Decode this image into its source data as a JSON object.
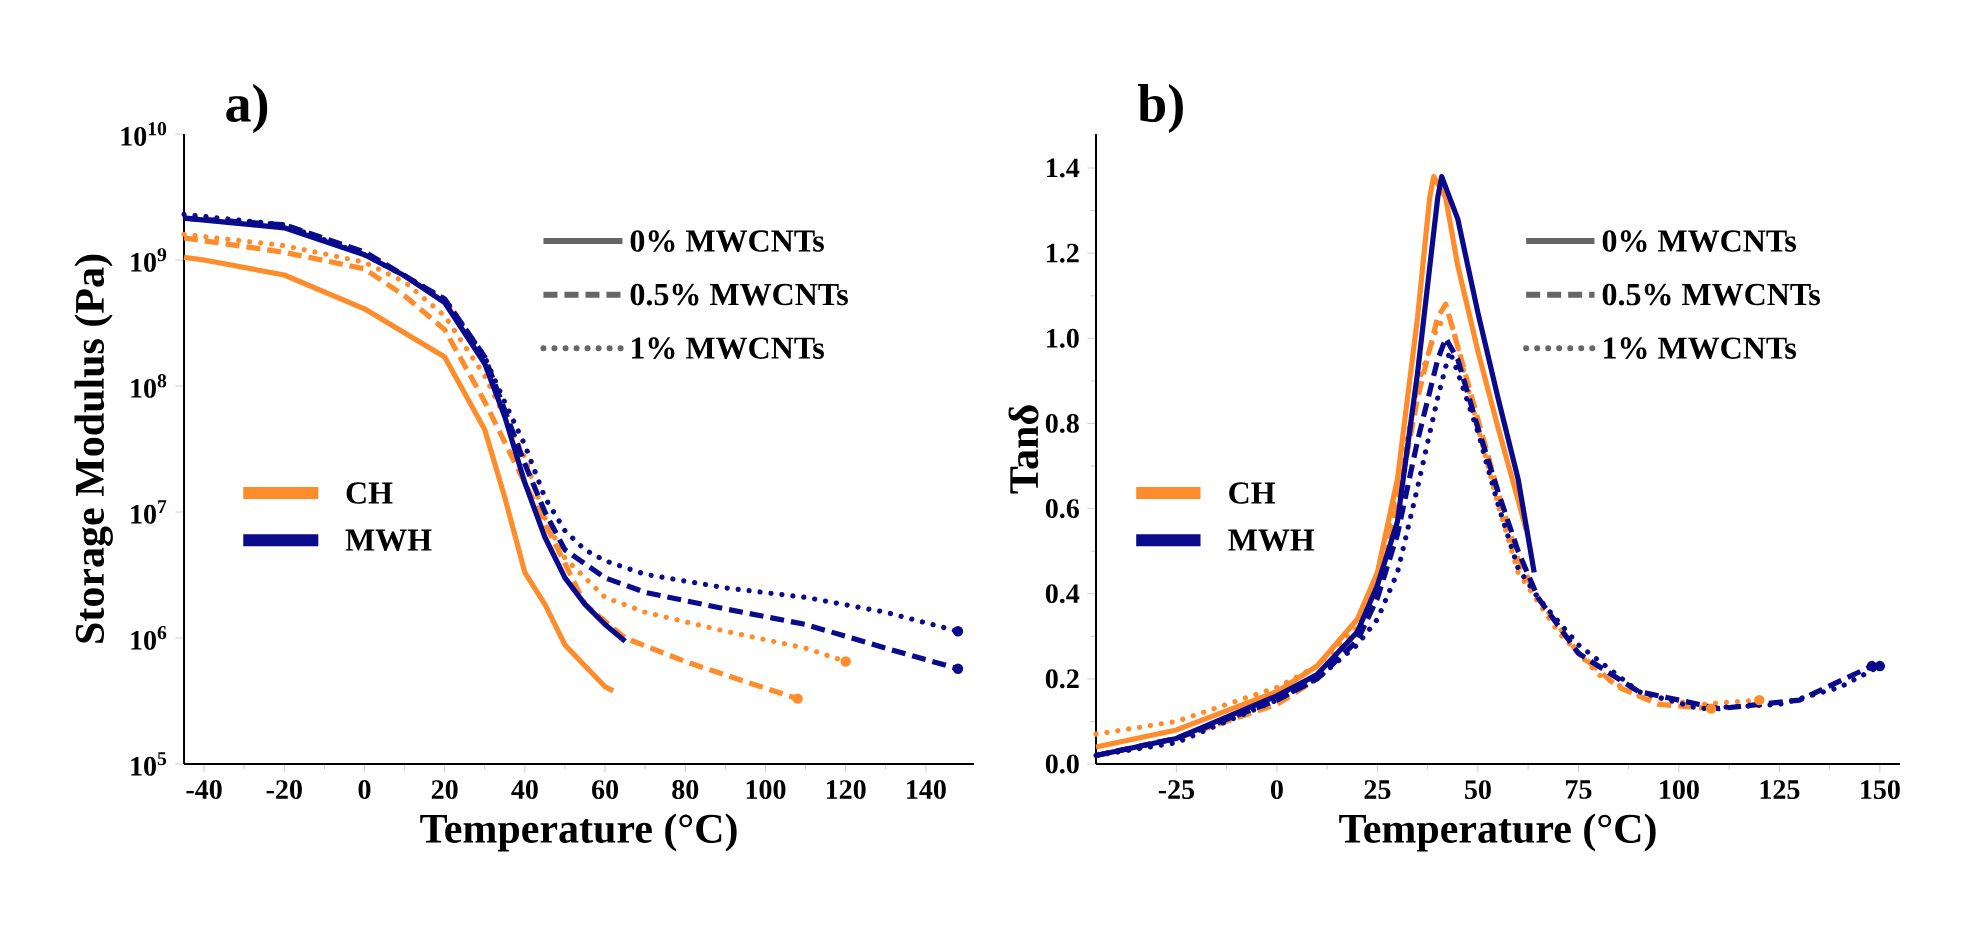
{
  "chart_data": [
    {
      "type": "line",
      "title": "a)",
      "xlabel": "Temperature (°C)",
      "ylabel": "Storage Modulus (Pa)",
      "log": "y",
      "xlim": [
        -45,
        152
      ],
      "xticks": [
        -40,
        -20,
        0,
        20,
        40,
        60,
        80,
        100,
        120,
        140
      ],
      "ylim": [
        100000,
        10000000000
      ],
      "yticks": [
        {
          "value": 100000,
          "label": "10$^{5}$"
        },
        {
          "value": 1000000,
          "label": "10$^{6}$"
        },
        {
          "value": 10000000,
          "label": "10$^{7}$"
        },
        {
          "value": 100000000,
          "label": "10$^{8}$"
        },
        {
          "value": 1000000000,
          "label": "10$^{9}$"
        },
        {
          "value": 10000000000,
          "label": "10$^{10}$"
        }
      ],
      "grid": false,
      "annotations": [
        "0% MWCNTs",
        "0.5% MWCNTs",
        "1% MWCNTs",
        "CH",
        "MWH"
      ],
      "series": [
        {
          "color": "#ff8c2a",
          "line_style": "solid",
          "x": [
            -45,
            -40,
            -20,
            0,
            20,
            30,
            35,
            40,
            45,
            50,
            60,
            62
          ],
          "values": [
            1050000000,
            1000000000,
            760000000,
            410000000,
            170000000,
            45000000,
            13000000,
            3300000,
            1850000,
            880000,
            410000,
            380000
          ]
        },
        {
          "color": "#ff8c2a",
          "line_style": "dashed",
          "x": [
            -45,
            -20,
            0,
            10,
            20,
            30,
            40,
            50,
            55,
            65,
            80,
            95,
            108
          ],
          "values": [
            1500000000,
            1150000000,
            850000000,
            520000000,
            280000000,
            75000000,
            17000000,
            3900000,
            1850000,
            1000000,
            650000,
            450000,
            330000
          ]
        },
        {
          "color": "#ff8c2a",
          "line_style": "dotted",
          "x": [
            -45,
            -20,
            0,
            10,
            20,
            30,
            40,
            45,
            50,
            60,
            70,
            90,
            110,
            120
          ],
          "values": [
            1600000000,
            1300000000,
            960000000,
            670000000,
            360000000,
            120000000,
            27000000,
            9000000,
            4300000,
            2100000,
            1600000,
            1130000,
            830000,
            650000
          ]
        },
        {
          "color": "#0a0a8c",
          "line_style": "solid",
          "x": [
            -45,
            -20,
            0,
            10,
            20,
            30,
            35,
            40,
            45,
            50,
            55,
            60,
            65
          ],
          "values": [
            2150000000,
            1800000000,
            1100000000,
            750000000,
            460000000,
            150000000,
            57000000,
            17000000,
            6300000,
            3000000,
            1850000,
            1280000,
            940000
          ]
        },
        {
          "color": "#0a0a8c",
          "line_style": "dashed",
          "x": [
            -45,
            -20,
            0,
            10,
            20,
            30,
            40,
            45,
            50,
            60,
            70,
            90,
            110,
            130,
            148
          ],
          "values": [
            2150000000,
            1900000000,
            1160000000,
            750000000,
            490000000,
            170000000,
            24000000,
            10000000,
            5000000,
            3000000,
            2300000,
            1700000,
            1280000,
            830000,
            570000
          ]
        },
        {
          "color": "#0a0a8c",
          "line_style": "dotted",
          "x": [
            -45,
            -20,
            0,
            10,
            20,
            30,
            35,
            40,
            45,
            50,
            55,
            60,
            70,
            90,
            110,
            130,
            148
          ],
          "values": [
            2300000000,
            1900000000,
            1100000000,
            750000000,
            490000000,
            170000000,
            74000000,
            34000000,
            13000000,
            7100000,
            5000000,
            4100000,
            3200000,
            2500000,
            2100000,
            1600000,
            1130000
          ]
        }
      ]
    },
    {
      "type": "line",
      "title": "b)",
      "xlabel": "Temperature (°C)",
      "ylabel": "Tanδ",
      "xlim": [
        -45,
        155
      ],
      "xticks": [
        -25,
        0,
        25,
        50,
        75,
        100,
        125,
        150
      ],
      "ylim": [
        0,
        1.48
      ],
      "yticks": [
        {
          "value": 0,
          "label": "0.0"
        },
        {
          "value": 0.2,
          "label": "0.2"
        },
        {
          "value": 0.4,
          "label": "0.4"
        },
        {
          "value": 0.6,
          "label": "0.6"
        },
        {
          "value": 0.8,
          "label": "0.8"
        },
        {
          "value": 1.0,
          "label": "1.0"
        },
        {
          "value": 1.2,
          "label": "1.2"
        },
        {
          "value": 1.4,
          "label": "1.4"
        }
      ],
      "grid": false,
      "annotations": [
        "0% MWCNTs",
        "0.5% MWCNTs",
        "1% MWCNTs",
        "CH",
        "MWH"
      ],
      "series": [
        {
          "color": "#ff8c2a",
          "line_style": "solid",
          "x": [
            -45,
            -25,
            0,
            10,
            20,
            25,
            30,
            35,
            38,
            39,
            42,
            45,
            50,
            55,
            60,
            62
          ],
          "values": [
            0.04,
            0.08,
            0.17,
            0.23,
            0.34,
            0.45,
            0.67,
            1.05,
            1.33,
            1.38,
            1.33,
            1.17,
            0.97,
            0.79,
            0.62,
            0.55
          ]
        },
        {
          "color": "#ff8c2a",
          "line_style": "dashed",
          "x": [
            -45,
            -25,
            0,
            10,
            20,
            25,
            30,
            35,
            40,
            42,
            45,
            50,
            55,
            60,
            65,
            75,
            85,
            95,
            108
          ],
          "values": [
            0.02,
            0.06,
            0.14,
            0.2,
            0.29,
            0.39,
            0.61,
            0.86,
            1.05,
            1.08,
            0.98,
            0.81,
            0.64,
            0.48,
            0.39,
            0.26,
            0.18,
            0.14,
            0.13
          ]
        },
        {
          "color": "#ff8c2a",
          "line_style": "dotted",
          "x": [
            -45,
            -25,
            0,
            10,
            20,
            25,
            30,
            35,
            40,
            43,
            45,
            50,
            55,
            60,
            70,
            80,
            90,
            105,
            120
          ],
          "values": [
            0.07,
            0.1,
            0.18,
            0.23,
            0.32,
            0.42,
            0.65,
            0.89,
            1.03,
            1.05,
            0.98,
            0.79,
            0.61,
            0.45,
            0.31,
            0.21,
            0.16,
            0.14,
            0.15
          ]
        },
        {
          "color": "#0a0a8c",
          "line_style": "solid",
          "x": [
            -45,
            -25,
            0,
            10,
            20,
            25,
            30,
            35,
            40,
            41,
            45,
            50,
            55,
            60,
            64
          ],
          "values": [
            0.02,
            0.06,
            0.16,
            0.21,
            0.31,
            0.42,
            0.57,
            0.92,
            1.33,
            1.38,
            1.28,
            1.06,
            0.86,
            0.67,
            0.45
          ]
        },
        {
          "color": "#0a0a8c",
          "line_style": "dashed",
          "x": [
            -45,
            -25,
            0,
            10,
            20,
            25,
            30,
            35,
            40,
            42,
            45,
            50,
            55,
            60,
            65,
            75,
            90,
            110,
            130,
            148
          ],
          "values": [
            0.02,
            0.06,
            0.15,
            0.2,
            0.29,
            0.39,
            0.54,
            0.76,
            0.95,
            1.0,
            0.95,
            0.79,
            0.64,
            0.5,
            0.39,
            0.26,
            0.17,
            0.13,
            0.15,
            0.23
          ]
        },
        {
          "color": "#0a0a8c",
          "line_style": "dotted",
          "x": [
            -45,
            -25,
            0,
            10,
            20,
            25,
            30,
            35,
            40,
            43,
            45,
            50,
            55,
            60,
            65,
            75,
            90,
            105,
            125,
            140,
            150
          ],
          "values": [
            0.02,
            0.05,
            0.15,
            0.2,
            0.28,
            0.34,
            0.45,
            0.65,
            0.86,
            0.97,
            0.92,
            0.78,
            0.61,
            0.46,
            0.39,
            0.28,
            0.17,
            0.13,
            0.14,
            0.18,
            0.23
          ]
        }
      ]
    }
  ]
}
